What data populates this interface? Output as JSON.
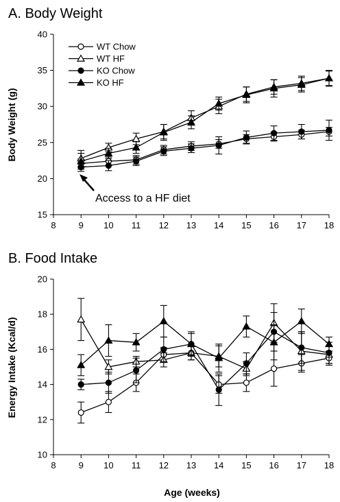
{
  "chart_data": [
    {
      "type": "line",
      "title": "A. Body Weight",
      "xlabel": "",
      "ylabel": "Body Weight (g)",
      "xlim": [
        8,
        18
      ],
      "ylim": [
        15,
        40
      ],
      "xticks": [
        8,
        9,
        10,
        11,
        12,
        13,
        14,
        15,
        16,
        17,
        18
      ],
      "yticks": [
        15,
        20,
        25,
        30,
        35,
        40
      ],
      "grid": false,
      "legend_position": "top-left",
      "x": [
        9,
        10,
        11,
        12,
        13,
        14,
        15,
        16,
        17,
        18
      ],
      "series": [
        {
          "name": "WT Chow",
          "marker": "open-circle",
          "values": [
            22.1,
            22.4,
            22.6,
            24.0,
            24.5,
            24.8,
            25.5,
            25.8,
            26.1,
            26.5
          ],
          "error": [
            0.6,
            0.6,
            0.6,
            0.6,
            0.6,
            0.6,
            0.6,
            0.6,
            0.6,
            0.6
          ]
        },
        {
          "name": "WT HF",
          "marker": "open-triangle",
          "values": [
            22.8,
            24.3,
            25.5,
            26.5,
            28.4,
            30.0,
            31.7,
            32.7,
            33.2,
            33.9
          ],
          "error": [
            1.1,
            0.6,
            0.8,
            1.0,
            1.0,
            1.0,
            1.0,
            1.0,
            1.0,
            1.0
          ]
        },
        {
          "name": "KO Chow",
          "marker": "filled-circle",
          "values": [
            21.6,
            21.8,
            22.4,
            23.8,
            24.2,
            24.6,
            25.7,
            26.3,
            26.5,
            26.7
          ],
          "error": [
            0.6,
            0.7,
            0.6,
            0.6,
            0.6,
            1.2,
            0.9,
            1.0,
            1.0,
            1.4
          ]
        },
        {
          "name": "KO HF",
          "marker": "filled-triangle",
          "values": [
            22.4,
            23.5,
            24.3,
            26.4,
            27.8,
            30.4,
            31.6,
            32.5,
            33.0,
            33.9
          ],
          "error": [
            1.1,
            0.7,
            0.8,
            1.1,
            0.9,
            0.9,
            1.1,
            1.2,
            1.0,
            1.1
          ]
        }
      ],
      "annotation": {
        "text": "Access to a HF diet",
        "x": 9,
        "y": 21
      }
    },
    {
      "type": "line",
      "title": "B. Food Intake",
      "xlabel": "Age (weeks)",
      "ylabel": "Energy Intake (Kcal/d)",
      "xlim": [
        8,
        18
      ],
      "ylim": [
        10,
        20
      ],
      "xticks": [
        8,
        9,
        10,
        11,
        12,
        13,
        14,
        15,
        16,
        17,
        18
      ],
      "yticks": [
        10,
        12,
        14,
        16,
        18,
        20
      ],
      "grid": false,
      "legend_position": "none",
      "x": [
        9,
        10,
        11,
        12,
        13,
        14,
        15,
        16,
        17,
        18
      ],
      "series": [
        {
          "name": "WT Chow",
          "marker": "open-circle",
          "values": [
            12.4,
            13.0,
            14.1,
            15.7,
            15.8,
            14.0,
            14.1,
            14.9,
            15.2,
            15.5
          ],
          "error": [
            0.6,
            0.6,
            0.5,
            0.4,
            0.4,
            0.5,
            0.5,
            1.0,
            0.5,
            0.4
          ]
        },
        {
          "name": "WT HF",
          "marker": "open-triangle",
          "values": [
            17.7,
            15.0,
            15.3,
            15.4,
            15.8,
            15.6,
            14.9,
            17.5,
            15.9,
            15.7
          ],
          "error": [
            1.2,
            0.4,
            0.3,
            0.4,
            0.4,
            0.6,
            0.4,
            1.1,
            1.1,
            0.5
          ]
        },
        {
          "name": "KO Chow",
          "marker": "filled-circle",
          "values": [
            14.0,
            14.1,
            14.8,
            16.0,
            16.3,
            13.7,
            15.2,
            17.0,
            16.1,
            15.8
          ],
          "error": [
            0.3,
            0.6,
            0.7,
            0.7,
            0.6,
            0.9,
            0.6,
            1.1,
            0.9,
            0.6
          ]
        },
        {
          "name": "KO HF",
          "marker": "filled-triangle",
          "values": [
            15.1,
            16.5,
            16.4,
            17.6,
            16.3,
            15.5,
            17.3,
            16.4,
            17.6,
            16.3
          ],
          "error": [
            0.6,
            0.9,
            0.5,
            0.9,
            0.7,
            0.8,
            0.6,
            1.0,
            0.7,
            0.4
          ]
        }
      ]
    }
  ]
}
